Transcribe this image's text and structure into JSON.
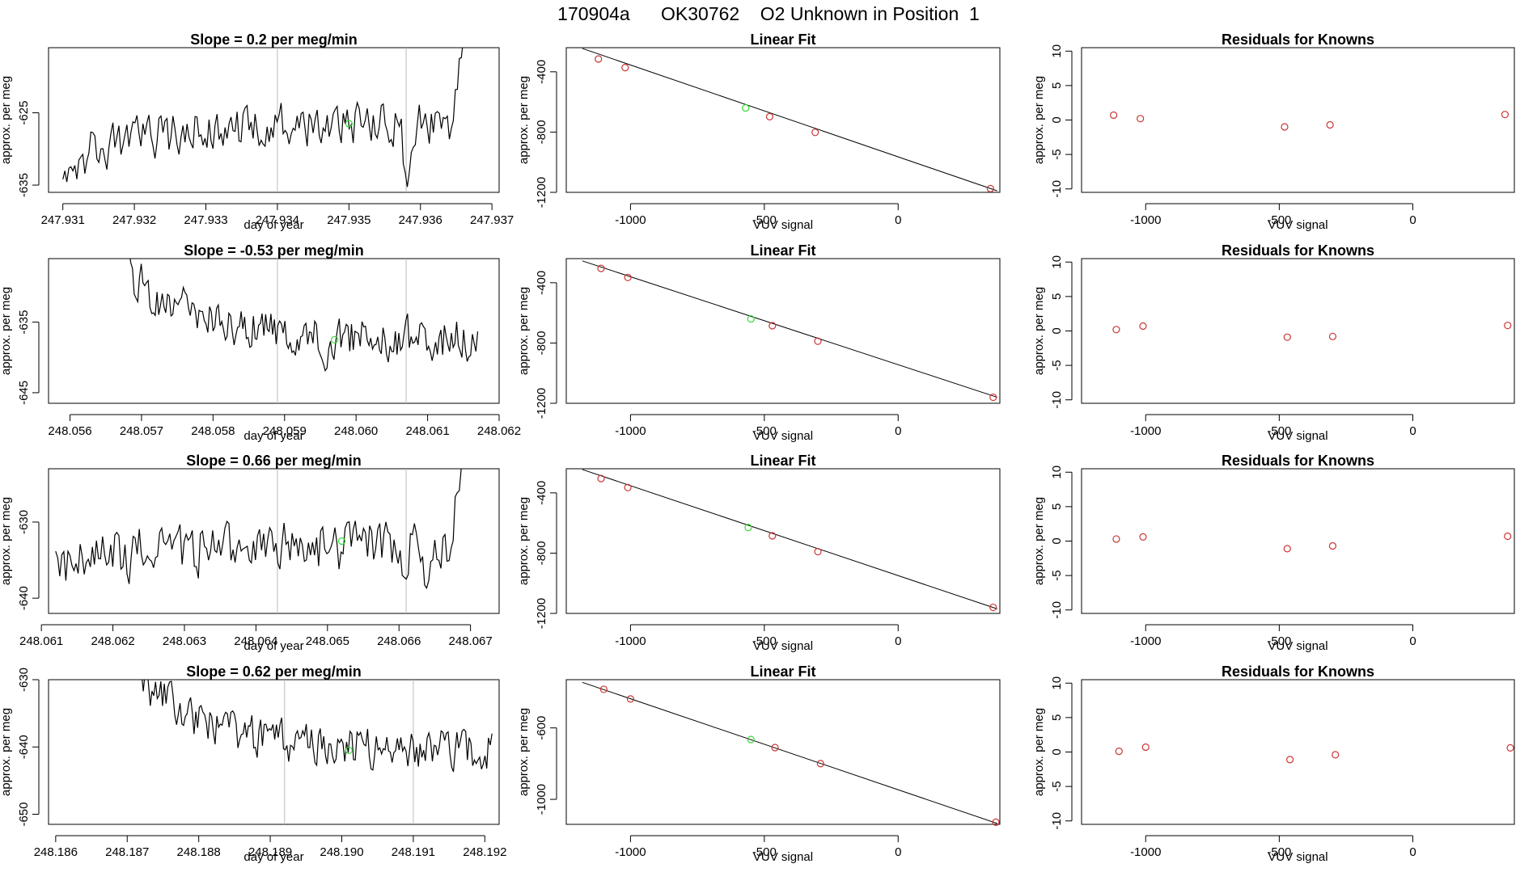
{
  "main_title": "170904a      OK30762    O2 Unknown in Position  1",
  "colors": {
    "line": "#000000",
    "point_known": "#cc3333",
    "point_unknown": "#33dd33",
    "vline": "#bbbbbb",
    "axis": "#000000"
  },
  "chart_data": [
    {
      "type": "line",
      "panel": "timeseries",
      "row": 1,
      "title": "Slope =  0.2  per meg/min",
      "xlabel": "day of year",
      "ylabel": "approx. per meg",
      "xlim": [
        247.9308,
        247.9371
      ],
      "ylim": [
        -636,
        -616
      ],
      "xticks": [
        "247.931",
        "247.932",
        "247.933",
        "247.934",
        "247.935",
        "247.936",
        "247.937"
      ],
      "yticks": [
        -625,
        -635
      ],
      "vlines": [
        247.934,
        247.9358
      ],
      "start_x": 247.931,
      "end_x": 247.9366,
      "start_y": -632,
      "mean_y": -626.5,
      "noise": 1.4,
      "trend": 0.0,
      "end_jump": 14,
      "dips": [
        [
          247.9358,
          -8
        ]
      ],
      "unknown_point": {
        "x": 247.935,
        "y": -626.5
      }
    },
    {
      "type": "scatter",
      "panel": "fit",
      "row": 1,
      "title": "Linear Fit",
      "xlabel": "VUV signal",
      "ylabel": "approx. per meg",
      "xlim": [
        -1240,
        380
      ],
      "ylim": [
        -1200,
        -240
      ],
      "xticks": [
        -1000,
        -500,
        0
      ],
      "yticks": [
        -400,
        -800,
        -1200
      ],
      "line": {
        "x": [
          -1180,
          370
        ],
        "y": [
          -245,
          -1190
        ]
      },
      "knowns": {
        "x": [
          -1120,
          -1020,
          -480,
          -310,
          345
        ],
        "y": [
          -315,
          -372,
          -698,
          -802,
          -1175
        ]
      },
      "unknown": {
        "x": -570,
        "y": -640
      }
    },
    {
      "type": "scatter",
      "panel": "residuals",
      "row": 1,
      "title": "Residuals for Knowns",
      "xlabel": "VUV signal",
      "ylabel": "approx. per meg",
      "xlim": [
        -1240,
        380
      ],
      "ylim": [
        -10.5,
        10.5
      ],
      "xticks": [
        -1000,
        -500,
        0
      ],
      "yticks": [
        10,
        5,
        0,
        -5,
        -10
      ],
      "x": [
        -1120,
        -1020,
        -480,
        -310,
        345
      ],
      "y": [
        0.7,
        0.2,
        -1.0,
        -0.7,
        0.8
      ]
    },
    {
      "type": "line",
      "panel": "timeseries",
      "row": 2,
      "title": "Slope =  -0.53  per meg/min",
      "xlabel": "day of year",
      "ylabel": "approx. per meg",
      "xlim": [
        248.0557,
        248.062
      ],
      "ylim": [
        -646.5,
        -626
      ],
      "xticks": [
        "248.056",
        "248.057",
        "248.058",
        "248.059",
        "248.060",
        "248.061",
        "248.062"
      ],
      "yticks": [
        -635,
        -645
      ],
      "vlines": [
        248.0589,
        248.0607
      ],
      "start_x": 248.0568,
      "end_x": 248.0617,
      "start_y": -628,
      "mean_y": -637.5,
      "noise": 1.4,
      "trend": 0.0,
      "end_jump": 0,
      "dips": [
        [
          248.0596,
          -4
        ]
      ],
      "unknown_point": {
        "x": 248.0597,
        "y": -637.5
      }
    },
    {
      "type": "scatter",
      "panel": "fit",
      "row": 2,
      "title": "Linear Fit",
      "xlabel": "VUV signal",
      "ylabel": "approx. per meg",
      "xlim": [
        -1240,
        380
      ],
      "ylim": [
        -1200,
        -240
      ],
      "xticks": [
        -1000,
        -500,
        0
      ],
      "yticks": [
        -400,
        -800,
        -1200
      ],
      "line": {
        "x": [
          -1180,
          370
        ],
        "y": [
          -255,
          -1160
        ]
      },
      "knowns": {
        "x": [
          -1110,
          -1010,
          -470,
          -300,
          355
        ],
        "y": [
          -305,
          -365,
          -685,
          -788,
          -1160
        ]
      },
      "unknown": {
        "x": -550,
        "y": -640
      }
    },
    {
      "type": "scatter",
      "panel": "residuals",
      "row": 2,
      "title": "Residuals for Knowns",
      "xlabel": "VUV signal",
      "ylabel": "approx. per meg",
      "xlim": [
        -1240,
        380
      ],
      "ylim": [
        -10.5,
        10.5
      ],
      "xticks": [
        -1000,
        -500,
        0
      ],
      "yticks": [
        10,
        5,
        0,
        -5,
        -10
      ],
      "x": [
        -1110,
        -1010,
        -470,
        -300,
        355
      ],
      "y": [
        0.2,
        0.7,
        -0.9,
        -0.8,
        0.8
      ]
    },
    {
      "type": "line",
      "panel": "timeseries",
      "row": 3,
      "title": "Slope =  0.66  per meg/min",
      "xlabel": "day of year",
      "ylabel": "approx. per meg",
      "xlim": [
        248.0611,
        248.0674
      ],
      "ylim": [
        -642,
        -623
      ],
      "xticks": [
        "248.061",
        "248.062",
        "248.063",
        "248.064",
        "248.065",
        "248.066",
        "248.067"
      ],
      "yticks": [
        -630,
        -640
      ],
      "vlines": [
        248.0643,
        248.0661
      ],
      "start_x": 248.0612,
      "end_x": 248.0669,
      "start_y": -636,
      "mean_y": -633,
      "noise": 1.6,
      "trend": 0.0,
      "end_jump": 14,
      "dips": [
        [
          248.0661,
          -5
        ],
        [
          248.0664,
          -6
        ]
      ],
      "unknown_point": {
        "x": 248.0652,
        "y": -632.5
      }
    },
    {
      "type": "scatter",
      "panel": "fit",
      "row": 3,
      "title": "Linear Fit",
      "xlabel": "VUV signal",
      "ylabel": "approx. per meg",
      "xlim": [
        -1240,
        380
      ],
      "ylim": [
        -1200,
        -240
      ],
      "xticks": [
        -1000,
        -500,
        0
      ],
      "yticks": [
        -400,
        -800,
        -1200
      ],
      "line": {
        "x": [
          -1180,
          370
        ],
        "y": [
          -245,
          -1170
        ]
      },
      "knowns": {
        "x": [
          -1110,
          -1010,
          -470,
          -300,
          355
        ],
        "y": [
          -305,
          -365,
          -685,
          -790,
          -1160
        ]
      },
      "unknown": {
        "x": -560,
        "y": -630
      }
    },
    {
      "type": "scatter",
      "panel": "residuals",
      "row": 3,
      "title": "Residuals for Knowns",
      "xlabel": "VUV signal",
      "ylabel": "approx. per meg",
      "xlim": [
        -1240,
        380
      ],
      "ylim": [
        -10.5,
        10.5
      ],
      "xticks": [
        -1000,
        -500,
        0
      ],
      "yticks": [
        10,
        5,
        0,
        -5,
        -10
      ],
      "x": [
        -1110,
        -1010,
        -470,
        -300,
        355
      ],
      "y": [
        0.3,
        0.6,
        -1.1,
        -0.7,
        0.7
      ]
    },
    {
      "type": "line",
      "panel": "timeseries",
      "row": 4,
      "title": "Slope =  0.62  per meg/min",
      "xlabel": "day of year",
      "ylabel": "approx. per meg",
      "xlim": [
        248.1859,
        248.1922
      ],
      "ylim": [
        -651.5,
        -630
      ],
      "xticks": [
        "248.186",
        "248.187",
        "248.188",
        "248.189",
        "248.190",
        "248.191",
        "248.192"
      ],
      "yticks": [
        -630,
        -640,
        -650
      ],
      "vlines": [
        248.1892,
        248.191
      ],
      "start_x": 248.1872,
      "end_x": 248.1921,
      "start_y": -630,
      "mean_y": -640.5,
      "noise": 1.4,
      "trend": 0.0,
      "end_jump": 0,
      "dips": [],
      "unknown_point": {
        "x": 248.1901,
        "y": -640.5
      }
    },
    {
      "type": "scatter",
      "panel": "fit",
      "row": 4,
      "title": "Linear Fit",
      "xlabel": "VUV signal",
      "ylabel": "approx. per meg",
      "xlim": [
        -1240,
        380
      ],
      "ylim": [
        -1140,
        -330
      ],
      "xticks": [
        -1000,
        -500,
        0
      ],
      "yticks": [
        -600,
        -1000
      ],
      "line": {
        "x": [
          -1180,
          370
        ],
        "y": [
          -345,
          -1135
        ]
      },
      "knowns": {
        "x": [
          -1100,
          -1000,
          -460,
          -290,
          365
        ],
        "y": [
          -384,
          -438,
          -710,
          -800,
          -1128
        ]
      },
      "unknown": {
        "x": -550,
        "y": -665
      }
    },
    {
      "type": "scatter",
      "panel": "residuals",
      "row": 4,
      "title": "Residuals for Knowns",
      "xlabel": "VUV signal",
      "ylabel": "approx. per meg",
      "xlim": [
        -1240,
        380
      ],
      "ylim": [
        -10.5,
        10.5
      ],
      "xticks": [
        -1000,
        -500,
        0
      ],
      "yticks": [
        10,
        5,
        0,
        -5,
        -10
      ],
      "x": [
        -1100,
        -1000,
        -460,
        -290,
        365
      ],
      "y": [
        0.1,
        0.7,
        -1.1,
        -0.4,
        0.6
      ]
    }
  ]
}
